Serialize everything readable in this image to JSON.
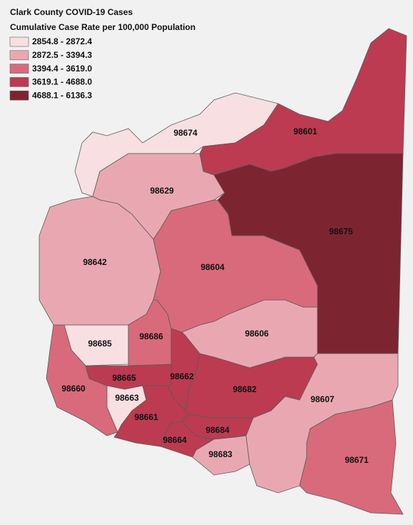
{
  "title": "Clark County COVID-19 Cases",
  "subtitle": "Cumulative Case Rate per 100,000 Population",
  "legend": [
    {
      "label": "2854.8 - 2872.4",
      "color": "#f8dfe2"
    },
    {
      "label": "2872.5 - 3394.3",
      "color": "#e9a8b1"
    },
    {
      "label": "3394.4 - 3619.0",
      "color": "#d96a7b"
    },
    {
      "label": "3619.1 - 4688.0",
      "color": "#bc3b51"
    },
    {
      "label": "4688.1 - 6136.3",
      "color": "#7c2531"
    }
  ],
  "regions": [
    {
      "label": "98674",
      "color": "#f8dfe2"
    },
    {
      "label": "98601",
      "color": "#bc3b51"
    },
    {
      "label": "98629",
      "color": "#e9a8b1"
    },
    {
      "label": "98675",
      "color": "#7c2531"
    },
    {
      "label": "98642",
      "color": "#e9a8b1"
    },
    {
      "label": "98604",
      "color": "#d96a7b"
    },
    {
      "label": "98606",
      "color": "#e9a8b1"
    },
    {
      "label": "98685",
      "color": "#f8dfe2"
    },
    {
      "label": "98686",
      "color": "#d96a7b"
    },
    {
      "label": "98660",
      "color": "#d96a7b"
    },
    {
      "label": "98665",
      "color": "#bc3b51"
    },
    {
      "label": "98663",
      "color": "#f8dfe2"
    },
    {
      "label": "98662",
      "color": "#bc3b51"
    },
    {
      "label": "98682",
      "color": "#bc3b51"
    },
    {
      "label": "98661",
      "color": "#bc3b51"
    },
    {
      "label": "98684",
      "color": "#bc3b51"
    },
    {
      "label": "98664",
      "color": "#bc3b51"
    },
    {
      "label": "98683",
      "color": "#e9a8b1"
    },
    {
      "label": "98607",
      "color": "#e9a8b1"
    },
    {
      "label": "98671",
      "color": "#d96a7b"
    }
  ]
}
